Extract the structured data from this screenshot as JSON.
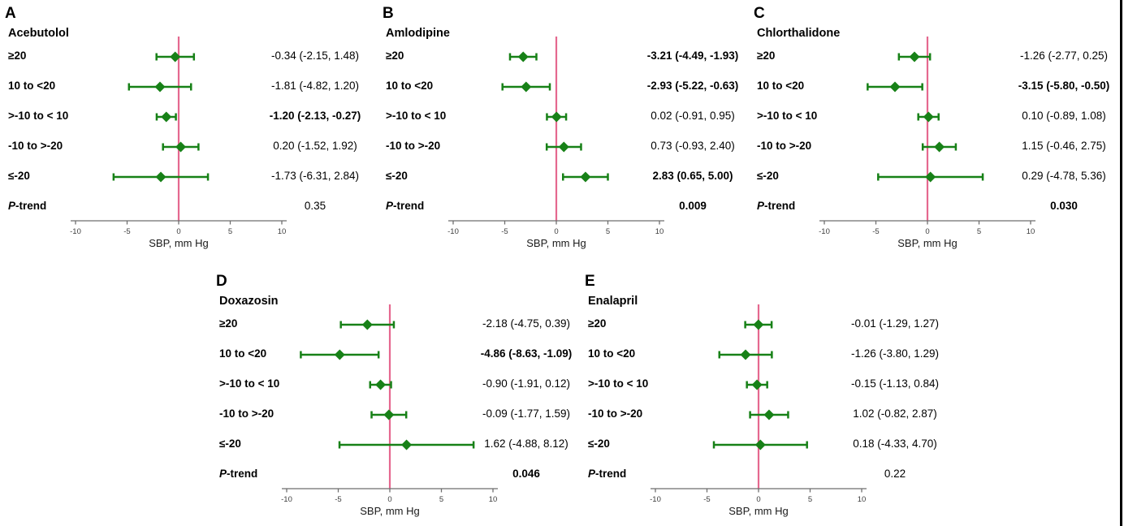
{
  "figure": {
    "p_label": {
      "italic": "P",
      "rest": "-trend"
    },
    "colors": {
      "marker": "#178117",
      "ref_line": "#e5688f",
      "axis": "#6e6e6e",
      "tick_text": "#3d3d3d",
      "text": "#000000",
      "border": "#000000"
    }
  },
  "chart_data": {
    "type": "forest",
    "x_axis": {
      "label": "SBP, mm Hg",
      "ticks": [
        -10,
        -5,
        0,
        5,
        10
      ],
      "range": [
        -10,
        10
      ]
    },
    "ref_line_x": 0,
    "row_categories": [
      "≥20",
      "10 to <20",
      ">-10 to < 10",
      "-10 to >-20",
      "≤-20"
    ],
    "panels": [
      {
        "letter": "A",
        "drug": "Acebutolol",
        "rows": [
          {
            "label": "≥20",
            "est": -0.34,
            "lo": -2.15,
            "hi": 1.48,
            "value": "-0.34 (-2.15, 1.48)",
            "bold": false
          },
          {
            "label": "10 to <20",
            "est": -1.81,
            "lo": -4.82,
            "hi": 1.2,
            "value": "-1.81 (-4.82, 1.20)",
            "bold": false
          },
          {
            "label": ">-10 to < 10",
            "est": -1.2,
            "lo": -2.13,
            "hi": -0.27,
            "value": "-1.20 (-2.13, -0.27)",
            "bold": true
          },
          {
            "label": "-10 to >-20",
            "est": 0.2,
            "lo": -1.52,
            "hi": 1.92,
            "value": "0.20 (-1.52, 1.92)",
            "bold": false
          },
          {
            "label": "≤-20",
            "est": -1.73,
            "lo": -6.31,
            "hi": 2.84,
            "value": "-1.73 (-6.31, 2.84)",
            "bold": false
          }
        ],
        "p_trend": {
          "value": "0.35",
          "bold": false
        }
      },
      {
        "letter": "B",
        "drug": "Amlodipine",
        "rows": [
          {
            "label": "≥20",
            "est": -3.21,
            "lo": -4.49,
            "hi": -1.93,
            "value": "-3.21 (-4.49, -1.93)",
            "bold": true
          },
          {
            "label": "10 to <20",
            "est": -2.93,
            "lo": -5.22,
            "hi": -0.63,
            "value": "-2.93 (-5.22, -0.63)",
            "bold": true
          },
          {
            "label": ">-10 to < 10",
            "est": 0.02,
            "lo": -0.91,
            "hi": 0.95,
            "value": "0.02 (-0.91, 0.95)",
            "bold": false
          },
          {
            "label": "-10 to >-20",
            "est": 0.73,
            "lo": -0.93,
            "hi": 2.4,
            "value": "0.73 (-0.93, 2.40)",
            "bold": false
          },
          {
            "label": "≤-20",
            "est": 2.83,
            "lo": 0.65,
            "hi": 5.0,
            "value": "2.83 (0.65, 5.00)",
            "bold": true
          }
        ],
        "p_trend": {
          "value": "0.009",
          "bold": true
        }
      },
      {
        "letter": "C",
        "drug": "Chlorthalidone",
        "rows": [
          {
            "label": "≥20",
            "est": -1.26,
            "lo": -2.77,
            "hi": 0.25,
            "value": "-1.26 (-2.77, 0.25)",
            "bold": false
          },
          {
            "label": "10 to <20",
            "est": -3.15,
            "lo": -5.8,
            "hi": -0.5,
            "value": "-3.15 (-5.80, -0.50)",
            "bold": true
          },
          {
            "label": ">-10 to < 10",
            "est": 0.1,
            "lo": -0.89,
            "hi": 1.08,
            "value": "0.10 (-0.89, 1.08)",
            "bold": false
          },
          {
            "label": "-10 to >-20",
            "est": 1.15,
            "lo": -0.46,
            "hi": 2.75,
            "value": "1.15 (-0.46, 2.75)",
            "bold": false
          },
          {
            "label": "≤-20",
            "est": 0.29,
            "lo": -4.78,
            "hi": 5.36,
            "value": "0.29 (-4.78, 5.36)",
            "bold": false
          }
        ],
        "p_trend": {
          "value": "0.030",
          "bold": true
        }
      },
      {
        "letter": "D",
        "drug": "Doxazosin",
        "rows": [
          {
            "label": "≥20",
            "est": -2.18,
            "lo": -4.75,
            "hi": 0.39,
            "value": "-2.18 (-4.75, 0.39)",
            "bold": false
          },
          {
            "label": "10 to <20",
            "est": -4.86,
            "lo": -8.63,
            "hi": -1.09,
            "value": "-4.86 (-8.63, -1.09)",
            "bold": true
          },
          {
            "label": ">-10 to < 10",
            "est": -0.9,
            "lo": -1.91,
            "hi": 0.12,
            "value": "-0.90 (-1.91, 0.12)",
            "bold": false
          },
          {
            "label": "-10 to >-20",
            "est": -0.09,
            "lo": -1.77,
            "hi": 1.59,
            "value": "-0.09 (-1.77, 1.59)",
            "bold": false
          },
          {
            "label": "≤-20",
            "est": 1.62,
            "lo": -4.88,
            "hi": 8.12,
            "value": "1.62 (-4.88, 8.12)",
            "bold": false
          }
        ],
        "p_trend": {
          "value": "0.046",
          "bold": true
        }
      },
      {
        "letter": "E",
        "drug": "Enalapril",
        "rows": [
          {
            "label": "≥20",
            "est": -0.01,
            "lo": -1.29,
            "hi": 1.27,
            "value": "-0.01 (-1.29, 1.27)",
            "bold": false
          },
          {
            "label": "10 to <20",
            "est": -1.26,
            "lo": -3.8,
            "hi": 1.29,
            "value": "-1.26 (-3.80, 1.29)",
            "bold": false
          },
          {
            "label": ">-10 to < 10",
            "est": -0.15,
            "lo": -1.13,
            "hi": 0.84,
            "value": "-0.15 (-1.13, 0.84)",
            "bold": false
          },
          {
            "label": "-10 to >-20",
            "est": 1.02,
            "lo": -0.82,
            "hi": 2.87,
            "value": "1.02 (-0.82, 2.87)",
            "bold": false
          },
          {
            "label": "≤-20",
            "est": 0.18,
            "lo": -4.33,
            "hi": 4.7,
            "value": "0.18 (-4.33, 4.70)",
            "bold": false
          }
        ],
        "p_trend": {
          "value": "0.22",
          "bold": false
        }
      }
    ]
  }
}
